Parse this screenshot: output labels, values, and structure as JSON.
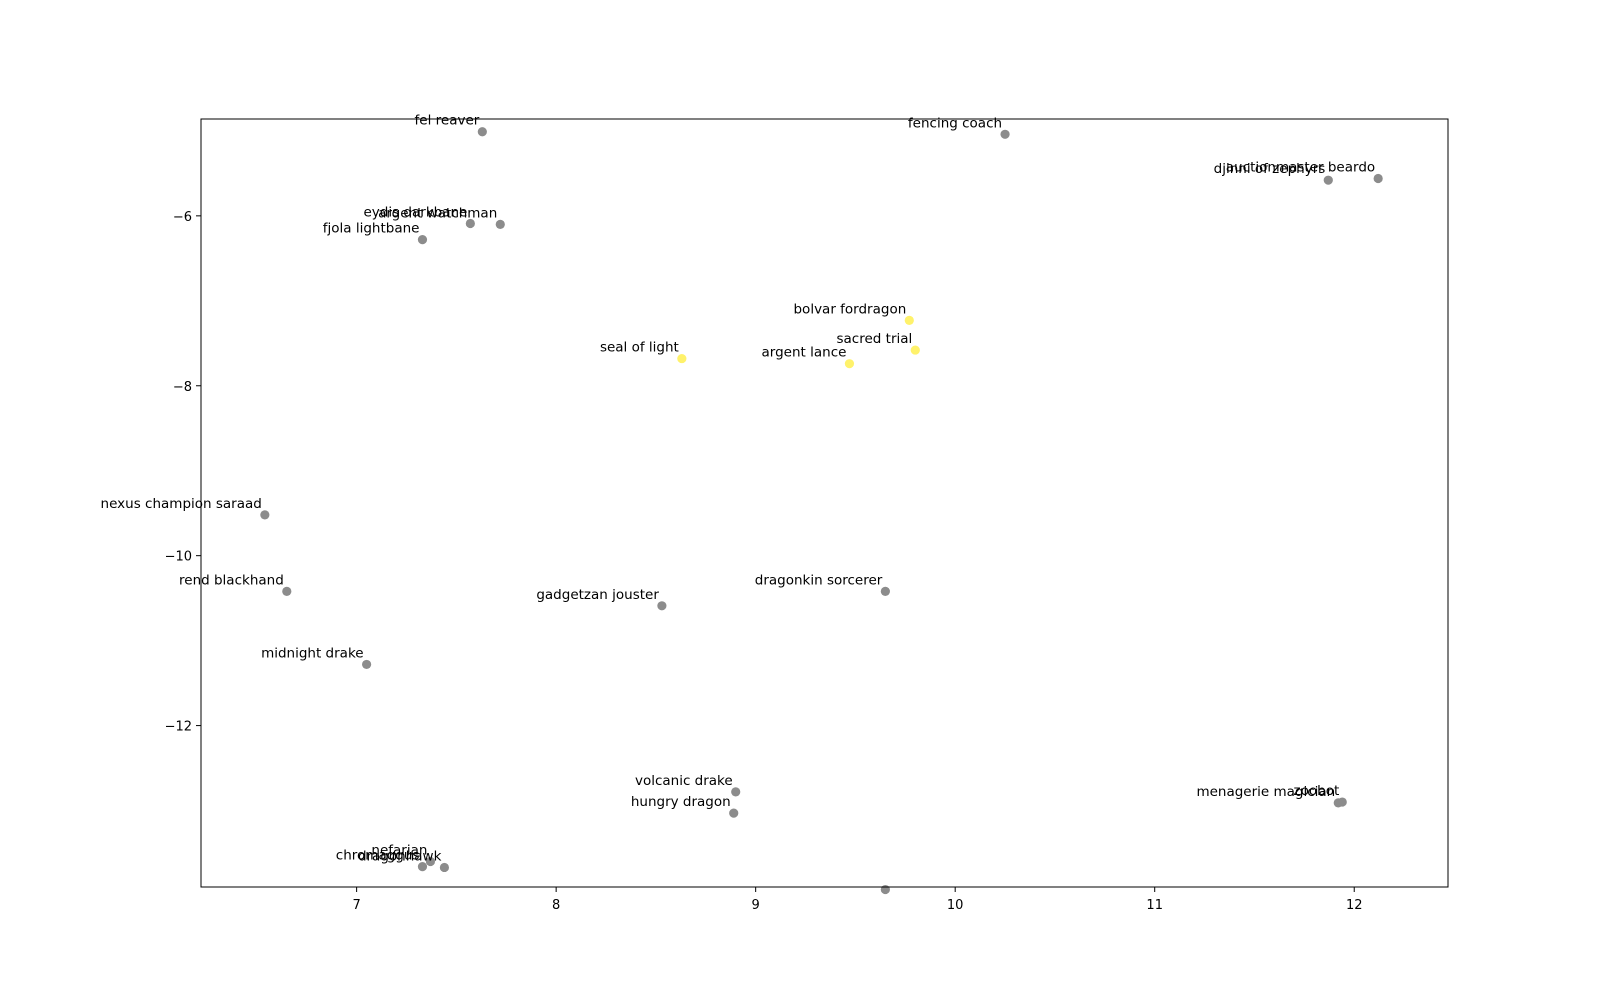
{
  "chart_data": {
    "type": "scatter",
    "title": "",
    "xlabel": "",
    "ylabel": "",
    "xlim": [
      6.22,
      12.47
    ],
    "ylim": [
      -13.9,
      -4.86
    ],
    "xticks": [
      7,
      8,
      9,
      10,
      11,
      12
    ],
    "yticks": [
      -6,
      -8,
      -10,
      -12
    ],
    "grid": false,
    "colors": {
      "gray": "#8c8c8c",
      "yellow": "#fff26b"
    },
    "points": [
      {
        "label": "fel reaver",
        "x": 7.63,
        "y": -5.01,
        "color": "gray"
      },
      {
        "label": "fencing coach",
        "x": 10.25,
        "y": -5.04,
        "color": "gray"
      },
      {
        "label": "djinni of zephyrs",
        "x": 11.87,
        "y": -5.58,
        "color": "gray"
      },
      {
        "label": "auctionmaster beardo",
        "x": 12.12,
        "y": -5.56,
        "color": "gray"
      },
      {
        "label": "eydis darkbane",
        "x": 7.57,
        "y": -6.09,
        "color": "gray"
      },
      {
        "label": "argent watchman",
        "x": 7.72,
        "y": -6.1,
        "color": "gray"
      },
      {
        "label": "fjola lightbane",
        "x": 7.33,
        "y": -6.28,
        "color": "gray"
      },
      {
        "label": "bolvar fordragon",
        "x": 9.77,
        "y": -7.23,
        "color": "yellow"
      },
      {
        "label": "sacred trial",
        "x": 9.8,
        "y": -7.58,
        "color": "yellow"
      },
      {
        "label": "seal of light",
        "x": 8.63,
        "y": -7.68,
        "color": "yellow"
      },
      {
        "label": "argent lance",
        "x": 9.47,
        "y": -7.74,
        "color": "yellow"
      },
      {
        "label": "nexus champion saraad",
        "x": 6.54,
        "y": -9.52,
        "color": "gray"
      },
      {
        "label": "rend blackhand",
        "x": 6.65,
        "y": -10.42,
        "color": "gray"
      },
      {
        "label": "dragonkin sorcerer",
        "x": 9.65,
        "y": -10.42,
        "color": "gray"
      },
      {
        "label": "gadgetzan jouster",
        "x": 8.53,
        "y": -10.59,
        "color": "gray"
      },
      {
        "label": "midnight drake",
        "x": 7.05,
        "y": -11.28,
        "color": "gray"
      },
      {
        "label": "volcanic drake",
        "x": 8.9,
        "y": -12.78,
        "color": "gray"
      },
      {
        "label": "hungry dragon",
        "x": 8.89,
        "y": -13.03,
        "color": "gray"
      },
      {
        "label": "menagerie magician",
        "x": 11.92,
        "y": -12.91,
        "color": "gray"
      },
      {
        "label": "zoobot",
        "x": 11.94,
        "y": -12.9,
        "color": "gray"
      },
      {
        "label": "chromaggus",
        "x": 7.33,
        "y": -13.66,
        "color": "gray"
      },
      {
        "label": "nefarian",
        "x": 7.37,
        "y": -13.6,
        "color": "gray"
      },
      {
        "label": "dragonhawk",
        "x": 7.44,
        "y": -13.67,
        "color": "gray"
      },
      {
        "label": "",
        "x": 9.65,
        "y": -13.93,
        "color": "gray"
      }
    ]
  }
}
